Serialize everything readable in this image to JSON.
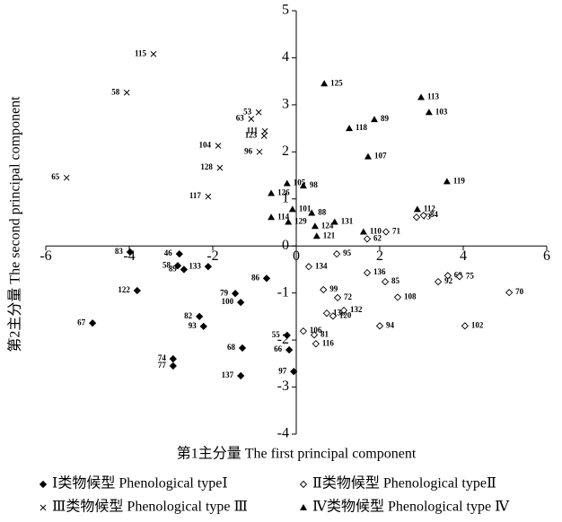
{
  "chart_data": {
    "type": "scatter",
    "x_label": "第1主分量 The first principal component",
    "y_label": "第2主分量 The second principal component",
    "xlim": [
      -6,
      6
    ],
    "ylim": [
      -4,
      5
    ],
    "xticks": [
      -6,
      -4,
      -2,
      0,
      2,
      4,
      6
    ],
    "yticks": [
      -4,
      -3,
      -2,
      -1,
      0,
      1,
      2,
      3,
      4,
      5
    ],
    "series": [
      {
        "name": "Ⅰ类物候型 Phenological typeⅠ",
        "marker": "diamond",
        "color": "#000000",
        "point_labels": [
          "83",
          "46",
          "58",
          "89",
          "133",
          "122",
          "86",
          "79",
          "100",
          "67",
          "82",
          "93",
          "68",
          "74",
          "77",
          "137",
          "55",
          "66",
          "97"
        ],
        "x": [
          -3.98,
          -2.8,
          -2.84,
          -2.69,
          -2.11,
          -3.81,
          -0.71,
          -1.46,
          -1.33,
          -4.88,
          -2.32,
          -2.22,
          -1.29,
          -2.95,
          -2.95,
          -1.33,
          -0.22,
          -0.17,
          -0.06
        ],
        "values": [
          -0.13,
          -0.17,
          -0.42,
          -0.5,
          -0.44,
          -0.95,
          -0.69,
          -1.01,
          -1.2,
          -1.64,
          -1.5,
          -1.71,
          -2.17,
          -2.4,
          -2.55,
          -2.76,
          -1.9,
          -2.21,
          -2.67
        ]
      },
      {
        "name": "Ⅱ类物候型 Phenological typeⅡ",
        "marker": "open-diamond",
        "color": "#000000",
        "point_labels": [
          "95",
          "134",
          "136",
          "85",
          "99",
          "72",
          "108",
          "92",
          "60",
          "75",
          "70",
          "138",
          "132",
          "120",
          "94",
          "102",
          "106",
          "81",
          "116",
          "73",
          "84",
          "62",
          "71"
        ],
        "x": [
          0.97,
          0.3,
          1.7,
          2.13,
          0.65,
          0.99,
          2.43,
          3.4,
          3.63,
          3.91,
          5.1,
          0.73,
          1.14,
          0.88,
          2.0,
          4.04,
          0.17,
          0.43,
          0.47,
          2.88,
          3.05,
          1.7,
          2.15
        ],
        "values": [
          -0.17,
          -0.44,
          -0.57,
          -0.76,
          -0.93,
          -1.1,
          -1.09,
          -0.76,
          -0.63,
          -0.65,
          -0.99,
          -1.43,
          -1.37,
          -1.49,
          -1.7,
          -1.7,
          -1.81,
          -1.89,
          -2.08,
          0.61,
          0.65,
          0.15,
          0.3
        ]
      },
      {
        "name": "Ⅲ类物候型 Phenological type Ⅲ",
        "marker": "x",
        "color": "#000000",
        "point_labels": [
          "115",
          "58",
          "53",
          "63",
          "111",
          "123",
          "104",
          "96",
          "128",
          "117",
          "65"
        ],
        "x": [
          -3.42,
          -4.06,
          -0.9,
          -1.08,
          -0.75,
          -0.77,
          -1.87,
          -0.88,
          -1.83,
          -2.11,
          -5.5
        ],
        "values": [
          4.08,
          3.26,
          2.84,
          2.7,
          2.44,
          2.34,
          2.13,
          2.0,
          1.66,
          1.05,
          1.45
        ]
      },
      {
        "name": "Ⅳ类物候型 Phenological type Ⅳ",
        "marker": "triangle",
        "color": "#000000",
        "point_labels": [
          "125",
          "113",
          "103",
          "89",
          "118",
          "107",
          "119",
          "105",
          "98",
          "126",
          "101",
          "88",
          "114",
          "129",
          "124",
          "131",
          "121",
          "110",
          "112"
        ],
        "x": [
          0.67,
          2.99,
          3.18,
          1.87,
          1.27,
          1.72,
          3.61,
          -0.22,
          0.17,
          -0.6,
          -0.09,
          0.37,
          -0.6,
          -0.19,
          0.45,
          0.92,
          0.49,
          1.61,
          2.9
        ],
        "values": [
          3.45,
          3.16,
          2.84,
          2.69,
          2.5,
          1.9,
          1.37,
          1.33,
          1.28,
          1.12,
          0.78,
          0.7,
          0.61,
          0.51,
          0.42,
          0.51,
          0.21,
          0.3,
          0.78
        ]
      }
    ]
  }
}
